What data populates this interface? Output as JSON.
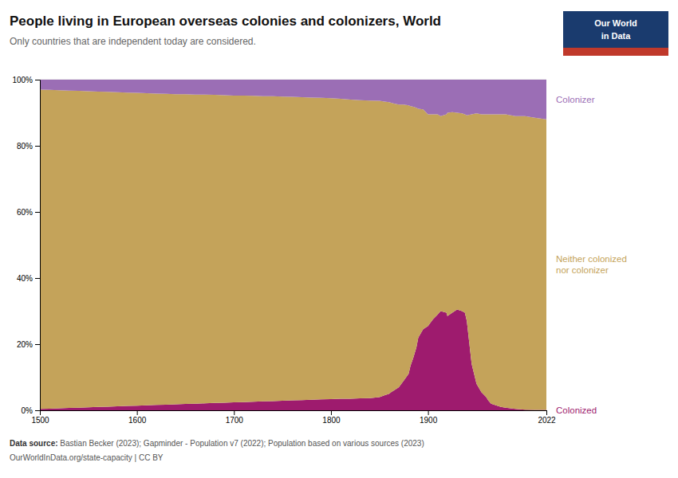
{
  "chart_data": {
    "type": "area",
    "stacked": true,
    "grid": true,
    "title": "People living in European overseas colonies and colonizers, World",
    "subtitle": "Only countries that are independent today are considered.",
    "source_bold": "Data source:",
    "source_line1": " Bastian Becker (2023); Gapminder - Population v7 (2022); Population based on various sources (2023)",
    "source_line2": "OurWorldInData.org/state-capacity | CC BY",
    "logo": {
      "texts": [
        "Our World",
        "in Data"
      ],
      "color": "#1a3b6e",
      "accent": "#c0392b"
    },
    "x": [
      1500,
      1510,
      1520,
      1530,
      1540,
      1550,
      1560,
      1570,
      1580,
      1590,
      1600,
      1610,
      1620,
      1630,
      1640,
      1650,
      1660,
      1670,
      1680,
      1690,
      1700,
      1710,
      1720,
      1730,
      1740,
      1750,
      1760,
      1770,
      1780,
      1790,
      1800,
      1810,
      1820,
      1830,
      1840,
      1850,
      1855,
      1860,
      1862,
      1865,
      1870,
      1875,
      1880,
      1882,
      1885,
      1888,
      1890,
      1895,
      1900,
      1905,
      1910,
      1913,
      1919,
      1920,
      1925,
      1930,
      1935,
      1938,
      1940,
      1945,
      1950,
      1955,
      1960,
      1962,
      1965,
      1970,
      1975,
      1980,
      1990,
      2000,
      2010,
      2022
    ],
    "series": [
      {
        "name": "Colonized",
        "color": "#9e1b6e",
        "values": [
          0.4,
          0.5,
          0.6,
          0.7,
          0.8,
          0.9,
          1.0,
          1.1,
          1.2,
          1.3,
          1.4,
          1.5,
          1.6,
          1.7,
          1.8,
          1.9,
          2.0,
          2.1,
          2.2,
          2.3,
          2.4,
          2.5,
          2.6,
          2.7,
          2.8,
          2.9,
          3.0,
          3.1,
          3.2,
          3.3,
          3.4,
          3.5,
          3.5,
          3.6,
          3.7,
          4.0,
          4.5,
          5.0,
          5.5,
          6.0,
          7.0,
          9.0,
          11.0,
          13.5,
          16.0,
          19.0,
          22.0,
          24.5,
          25.5,
          27.5,
          29.0,
          30.0,
          29.5,
          28.5,
          29.5,
          30.5,
          30.0,
          29.5,
          27.0,
          14.0,
          8.0,
          5.5,
          4.0,
          3.0,
          2.0,
          1.5,
          1.0,
          0.8,
          0.4,
          0.2,
          0.1,
          0.1
        ]
      },
      {
        "name": "Neither colonized\nnor colonizer",
        "color": "#c4a35a",
        "values": [
          96.6,
          96.4,
          96.2,
          96.0,
          95.8,
          95.6,
          95.4,
          95.2,
          95.0,
          94.8,
          94.6,
          94.4,
          94.2,
          94.0,
          93.8,
          93.7,
          93.5,
          93.4,
          93.2,
          93.0,
          92.8,
          92.7,
          92.5,
          92.3,
          92.2,
          92.0,
          91.8,
          91.6,
          91.4,
          91.2,
          91.0,
          90.7,
          90.5,
          90.2,
          90.0,
          89.6,
          88.9,
          88.2,
          87.5,
          86.8,
          85.5,
          83.5,
          81.2,
          78.5,
          75.8,
          72.5,
          69.2,
          66.5,
          64.0,
          62.0,
          60.5,
          59.0,
          60.0,
          61.5,
          60.7,
          59.5,
          59.8,
          60.0,
          62.2,
          75.5,
          81.8,
          84.0,
          85.5,
          86.5,
          87.5,
          88.0,
          88.5,
          88.7,
          88.6,
          88.8,
          88.4,
          87.9
        ]
      },
      {
        "name": "Colonizer",
        "color": "#9b6eb5",
        "values": [
          3.0,
          3.1,
          3.2,
          3.3,
          3.4,
          3.5,
          3.6,
          3.7,
          3.8,
          3.9,
          4.0,
          4.1,
          4.2,
          4.3,
          4.4,
          4.4,
          4.5,
          4.5,
          4.6,
          4.7,
          4.8,
          4.8,
          4.9,
          5.0,
          5.0,
          5.1,
          5.2,
          5.3,
          5.4,
          5.5,
          5.6,
          5.8,
          6.0,
          6.2,
          6.3,
          6.4,
          6.6,
          6.8,
          7.0,
          7.2,
          7.5,
          7.5,
          7.8,
          8.0,
          8.2,
          8.5,
          8.8,
          9.0,
          10.5,
          10.5,
          10.5,
          11.0,
          10.5,
          10.0,
          9.8,
          10.0,
          10.2,
          10.5,
          10.8,
          10.5,
          10.2,
          10.5,
          10.5,
          10.5,
          10.5,
          10.5,
          10.5,
          10.5,
          11.0,
          11.0,
          11.5,
          12.0
        ]
      }
    ],
    "xlim": [
      1500,
      2022
    ],
    "xticks": [
      1500,
      1600,
      1700,
      1800,
      1900,
      2022
    ],
    "ylim": [
      0,
      100
    ],
    "yticks": [
      {
        "value": 0,
        "label": "0%"
      },
      {
        "value": 20,
        "label": "20%"
      },
      {
        "value": 40,
        "label": "40%"
      },
      {
        "value": 60,
        "label": "60%"
      },
      {
        "value": 80,
        "label": "80%"
      },
      {
        "value": 100,
        "label": "100%"
      }
    ]
  }
}
